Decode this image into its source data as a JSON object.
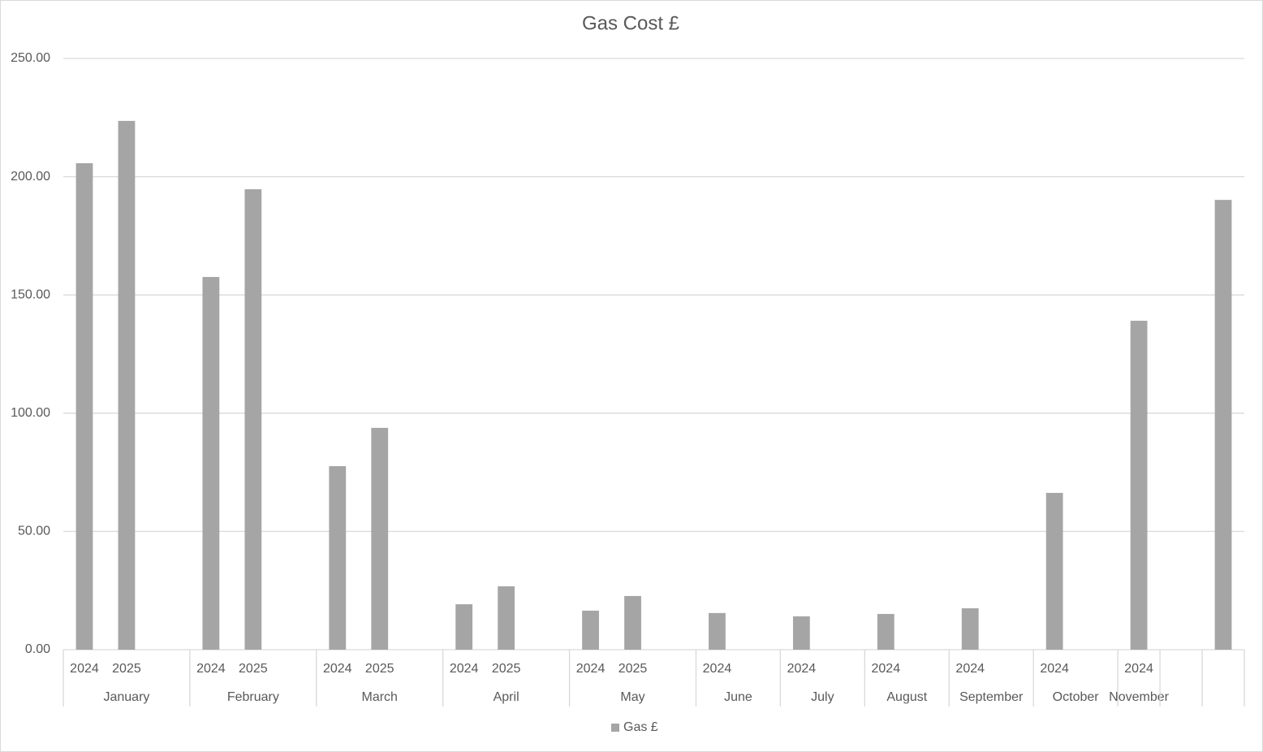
{
  "chart_data": {
    "type": "bar",
    "title": "Gas Cost £",
    "groups": [
      {
        "name": "January",
        "categories": [
          "2024",
          "2025",
          null
        ]
      },
      {
        "name": "February",
        "categories": [
          "2024",
          "2025",
          null
        ]
      },
      {
        "name": "March",
        "categories": [
          "2024",
          "2025",
          null
        ]
      },
      {
        "name": "April",
        "categories": [
          "2024",
          "2025",
          null
        ]
      },
      {
        "name": "May",
        "categories": [
          "2024",
          "2025",
          null
        ]
      },
      {
        "name": "June",
        "categories": [
          "2024",
          null
        ]
      },
      {
        "name": "July",
        "categories": [
          "2024",
          null
        ]
      },
      {
        "name": "August",
        "categories": [
          "2024",
          null
        ]
      },
      {
        "name": "September",
        "categories": [
          "2024",
          null
        ]
      },
      {
        "name": "October",
        "categories": [
          "2024",
          null
        ]
      },
      {
        "name": "November",
        "categories": [
          "2024"
        ]
      },
      {
        "name": null,
        "categories": [
          null
        ]
      },
      {
        "name": null,
        "categories": [
          null
        ]
      }
    ],
    "series": [
      {
        "name": "Gas £",
        "color": "#a5a5a5",
        "values": [
          205.7,
          223.6,
          null,
          157.6,
          194.7,
          null,
          77.6,
          93.8,
          null,
          19.2,
          26.8,
          null,
          16.5,
          22.7,
          null,
          15.5,
          null,
          14.1,
          null,
          15.1,
          null,
          17.5,
          null,
          66.3,
          null,
          139.1,
          null,
          190.2
        ]
      }
    ],
    "ylim": [
      0,
      250
    ],
    "yticks": [
      {
        "value": 0,
        "label": "0.00"
      },
      {
        "value": 50,
        "label": "50.00"
      },
      {
        "value": 100,
        "label": "100.00"
      },
      {
        "value": 150,
        "label": "150.00"
      },
      {
        "value": 200,
        "label": "200.00"
      },
      {
        "value": 250,
        "label": "250.00"
      }
    ],
    "grid": true,
    "legend": "bottom"
  }
}
